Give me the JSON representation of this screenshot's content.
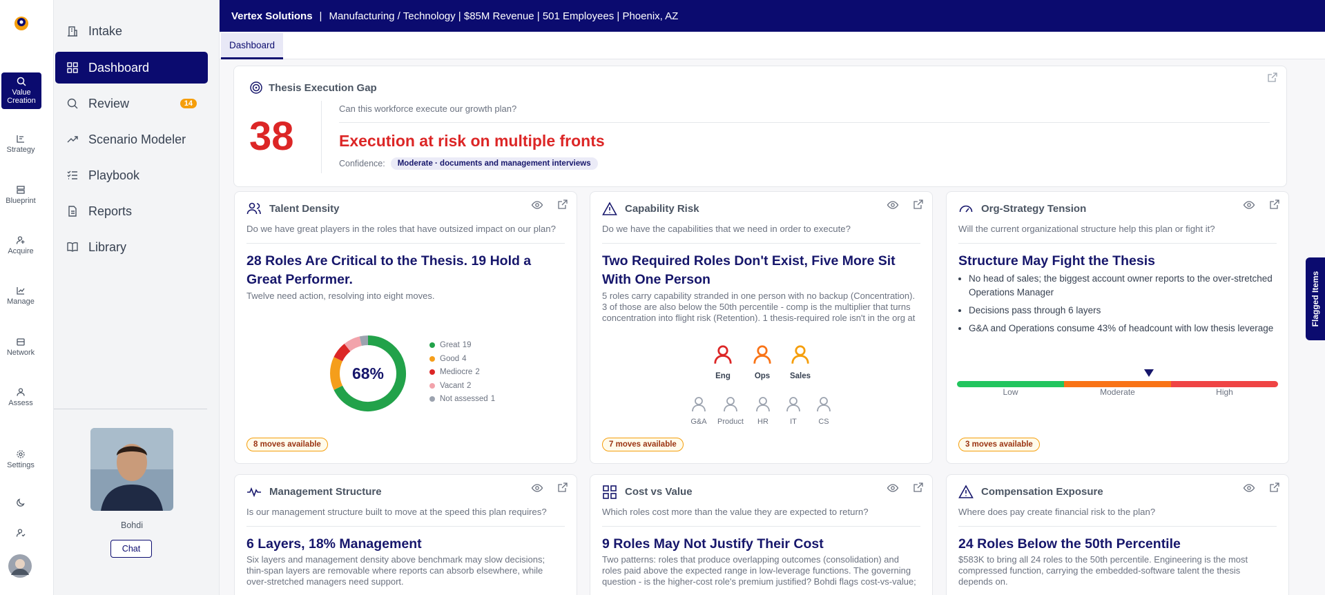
{
  "rail": {
    "items": [
      "Value Creation",
      "Strategy",
      "Blueprint",
      "Acquire",
      "Manage",
      "Network",
      "Assess",
      "Settings"
    ]
  },
  "sidebar": {
    "nav": [
      {
        "label": "Intake"
      },
      {
        "label": "Dashboard"
      },
      {
        "label": "Review",
        "badge": 14
      },
      {
        "label": "Scenario Modeler"
      },
      {
        "label": "Playbook"
      },
      {
        "label": "Reports"
      },
      {
        "label": "Library"
      }
    ],
    "profile": {
      "name": "Bohdi",
      "button": "Chat"
    }
  },
  "header": {
    "company": "Vertex Solutions",
    "details": "Manufacturing / Technology | $85M Revenue | 501 Employees | Phoenix, AZ"
  },
  "tabs": [
    "Dashboard"
  ],
  "thesis": {
    "title": "Thesis Execution Gap",
    "score": 38,
    "question": "Can this workforce execute our growth plan?",
    "headline": "Execution at risk on multiple fronts",
    "confidence_label": "Confidence:",
    "confidence": "Moderate · documents and management interviews"
  },
  "cards": [
    {
      "title": "Talent Density",
      "question": "Do we have great players in the roles that have outsized impact on our plan?",
      "headline": "28 Roles Are Critical to the Thesis. 19 Hold a Great Performer.",
      "body": "Twelve need action, resolving into eight moves.",
      "chart": {
        "type": "pie",
        "center_label": "68%",
        "categories": [
          "Great",
          "Good",
          "Mediocre",
          "Vacant",
          "Not assessed"
        ],
        "values": [
          19,
          4,
          2,
          2,
          1
        ],
        "colors": [
          "#22a24a",
          "#f59e1b",
          "#dc2626",
          "#f2a3ab",
          "#9ca3af"
        ]
      },
      "moves": "8 moves available"
    },
    {
      "title": "Capability Risk",
      "question": "Do we have the capabilities that we need in order to execute?",
      "headline": "Two Required Roles Don't Exist, Five More Sit With One Person",
      "body": "5 roles carry capability stranded in one person with no backup (Concentration). 3 of those are also below the 50th percentile - comp is the multiplier that turns concentration into flight risk (Retention). 1 thesis-required role isn't in the org at ...",
      "critical": [
        {
          "label": "Eng",
          "color": "#dc2626"
        },
        {
          "label": "Ops",
          "color": "#f97316"
        },
        {
          "label": "Sales",
          "color": "#f59e0b"
        }
      ],
      "others": [
        "G&A",
        "Product",
        "HR",
        "IT",
        "CS"
      ],
      "moves": "7 moves available"
    },
    {
      "title": "Org-Strategy Tension",
      "question": "Will the current organizational structure help this plan or fight it?",
      "headline": "Structure May Fight the Thesis",
      "bullets": [
        "No head of sales; the biggest account owner reports to the over-stretched Operations Manager",
        "Decisions pass through 6 layers",
        "G&A and Operations consume 43% of headcount with low thesis leverage"
      ],
      "scale": [
        "Low",
        "Moderate",
        "High"
      ],
      "moves": "3 moves available"
    },
    {
      "title": "Management Structure",
      "question": "Is our management structure built to move at the speed this plan requires?",
      "headline": "6 Layers, 18% Management",
      "body": "Six layers and management density above benchmark may slow decisions; thin-span layers are removable where reports can absorb elsewhere, while over-stretched managers need support."
    },
    {
      "title": "Cost vs Value",
      "question": "Which roles cost more than the value they are expected to return?",
      "headline": "9 Roles May Not Justify Their Cost",
      "body": "Two patterns: roles that produce overlapping outcomes (consolidation) and roles paid above the expected range in low-leverage functions. The governing question - is the higher-cost role's premium justified? Bohdi flags cost-vs-value; the..."
    },
    {
      "title": "Compensation Exposure",
      "question": "Where does pay create financial risk to the plan?",
      "headline": "24 Roles Below the 50th Percentile",
      "body": "$583K to bring all 24 roles to the 50th percentile. Engineering is the most compressed function, carrying the embedded-software talent the thesis depends on."
    }
  ],
  "flagged": "Flagged Items"
}
